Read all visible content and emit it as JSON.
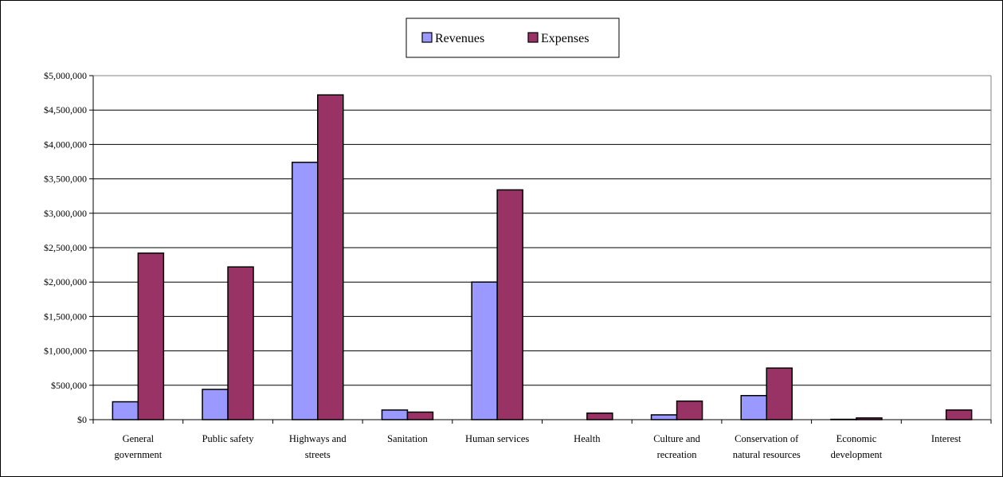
{
  "chart_data": {
    "type": "bar",
    "categories": [
      [
        "General",
        "government"
      ],
      [
        "Public safety"
      ],
      [
        "Highways and",
        "streets"
      ],
      [
        "Sanitation"
      ],
      [
        "Human services"
      ],
      [
        "Health"
      ],
      [
        "Culture and",
        "recreation"
      ],
      [
        "Conservation of",
        "natural resources"
      ],
      [
        "Economic",
        "development"
      ],
      [
        "Interest"
      ]
    ],
    "series": [
      {
        "name": "Revenues",
        "color": "#9999ff",
        "values": [
          260000,
          440000,
          3740000,
          140000,
          2000000,
          0,
          70000,
          350000,
          5000,
          0
        ]
      },
      {
        "name": "Expenses",
        "color": "#993366",
        "values": [
          2420000,
          2220000,
          4720000,
          110000,
          3340000,
          95000,
          270000,
          750000,
          25000,
          140000
        ]
      }
    ],
    "ylim": [
      0,
      5000000
    ],
    "ytick_step": 500000,
    "ytick_labels": [
      "$0",
      "$500,000",
      "$1,000,000",
      "$1,500,000",
      "$2,000,000",
      "$2,500,000",
      "$3,000,000",
      "$3,500,000",
      "$4,000,000",
      "$4,500,000",
      "$5,000,000"
    ],
    "grid": true,
    "legend_position": "top-center",
    "title": "",
    "xlabel": "",
    "ylabel": ""
  }
}
